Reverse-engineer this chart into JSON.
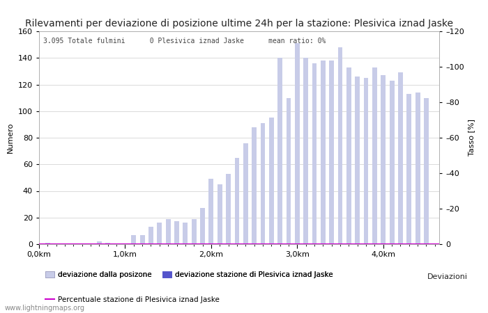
{
  "title": "Rilevamenti per deviazione di posizione ultime 24h per la stazione: Plesivica iznad Jaske",
  "subtitle": "3.095 Totale fulmini      0 Plesivica iznad Jaske      mean ratio: 0%",
  "ylabel_left": "Numero",
  "ylabel_right": "Tasso [%]",
  "legend_label_right": "Deviazioni",
  "bar_positions": [
    0.1,
    0.2,
    0.3,
    0.4,
    0.5,
    0.6,
    0.7,
    0.8,
    0.9,
    1.0,
    1.1,
    1.2,
    1.3,
    1.4,
    1.5,
    1.6,
    1.7,
    1.8,
    1.9,
    2.0,
    2.1,
    2.2,
    2.3,
    2.4,
    2.5,
    2.6,
    2.7,
    2.8,
    2.9,
    3.0,
    3.1,
    3.2,
    3.3,
    3.4,
    3.5,
    3.6,
    3.7,
    3.8,
    3.9,
    4.0,
    4.1,
    4.2,
    4.3,
    4.4,
    4.5
  ],
  "bar_heights": [
    1,
    0,
    0,
    0,
    0,
    0,
    2,
    1,
    0,
    0,
    7,
    7,
    13,
    16,
    19,
    17,
    16,
    19,
    27,
    49,
    45,
    53,
    65,
    76,
    88,
    91,
    95,
    140,
    110,
    151,
    140,
    136,
    138,
    138,
    148,
    133,
    126,
    125,
    133,
    127,
    123,
    129,
    113,
    114,
    110
  ],
  "bar_heights2": [
    0,
    0,
    0,
    0,
    0,
    0,
    0,
    0,
    0,
    0,
    0,
    0,
    0,
    0,
    0,
    0,
    0,
    0,
    0,
    0,
    0,
    0,
    0,
    0,
    0,
    0,
    0,
    0,
    0,
    0,
    0,
    0,
    0,
    0,
    0,
    0,
    0,
    0,
    0,
    0,
    0,
    0,
    0,
    0,
    0
  ],
  "bar_color_light": "#c8cce8",
  "bar_color_dark": "#5555cc",
  "bar_width": 0.055,
  "xlim": [
    0.0,
    4.65
  ],
  "ylim_left": [
    0,
    160
  ],
  "ylim_right": [
    0,
    120
  ],
  "xtick_positions": [
    0.0,
    1.0,
    2.0,
    3.0,
    4.0
  ],
  "xtick_labels": [
    "0,0km",
    "1,0km",
    "2,0km",
    "3,0km",
    "4,0km"
  ],
  "ytick_left": [
    0,
    20,
    40,
    60,
    80,
    100,
    120,
    140,
    160
  ],
  "ytick_right": [
    0,
    20,
    40,
    60,
    80,
    100,
    120
  ],
  "line_ratio": 0,
  "line_color": "#cc00cc",
  "background_color": "#ffffff",
  "grid_color": "#cccccc",
  "title_fontsize": 10,
  "label_fontsize": 8,
  "tick_fontsize": 8,
  "watermark": "www.lightningmaps.org",
  "legend1_label": "deviazione dalla posizone",
  "legend2_label": "deviazione stazione di Plesivica iznad Jaske",
  "legend3_label": "Percentuale stazione di Plesivica iznad Jaske"
}
